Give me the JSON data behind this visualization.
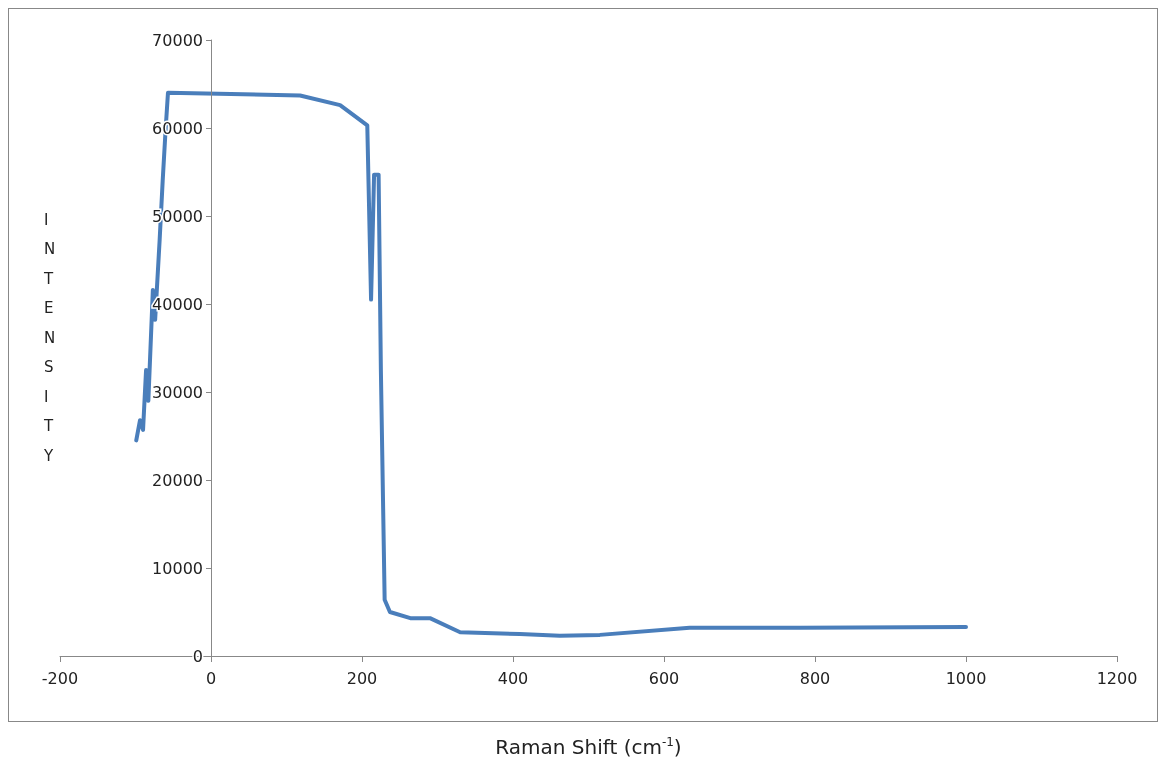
{
  "chart_data": {
    "type": "line",
    "xlabel": "Raman Shift (cm$^{-1}$)",
    "ylabel": "INTENSITY",
    "series": [
      {
        "color": "#4a7ebb",
        "x": [
          -99,
          -94,
          -90,
          -86,
          -83,
          -77,
          -74,
          -68,
          -64,
          -60,
          -57,
          118,
          171,
          207,
          212,
          216,
          222,
          225,
          230,
          237,
          264,
          290,
          330,
          409,
          462,
          515,
          634,
          780,
          1000
        ],
        "values": [
          24500,
          26800,
          25700,
          32500,
          29000,
          41600,
          38200,
          47300,
          54000,
          60000,
          64000,
          63700,
          62600,
          60300,
          40500,
          54700,
          54700,
          32500,
          6400,
          5000,
          4300,
          4300,
          2700,
          2500,
          2300,
          2400,
          3200,
          3200,
          3300
        ]
      }
    ],
    "xlim": [
      -200,
      1200
    ],
    "xticks": [
      -200,
      0,
      200,
      400,
      600,
      800,
      1000,
      1200
    ],
    "ylim": [
      0,
      70000
    ],
    "yticks": [
      0,
      10000,
      20000,
      30000,
      40000,
      50000,
      60000,
      70000
    ],
    "grid": false,
    "marker": "none",
    "line_style": "solid"
  }
}
